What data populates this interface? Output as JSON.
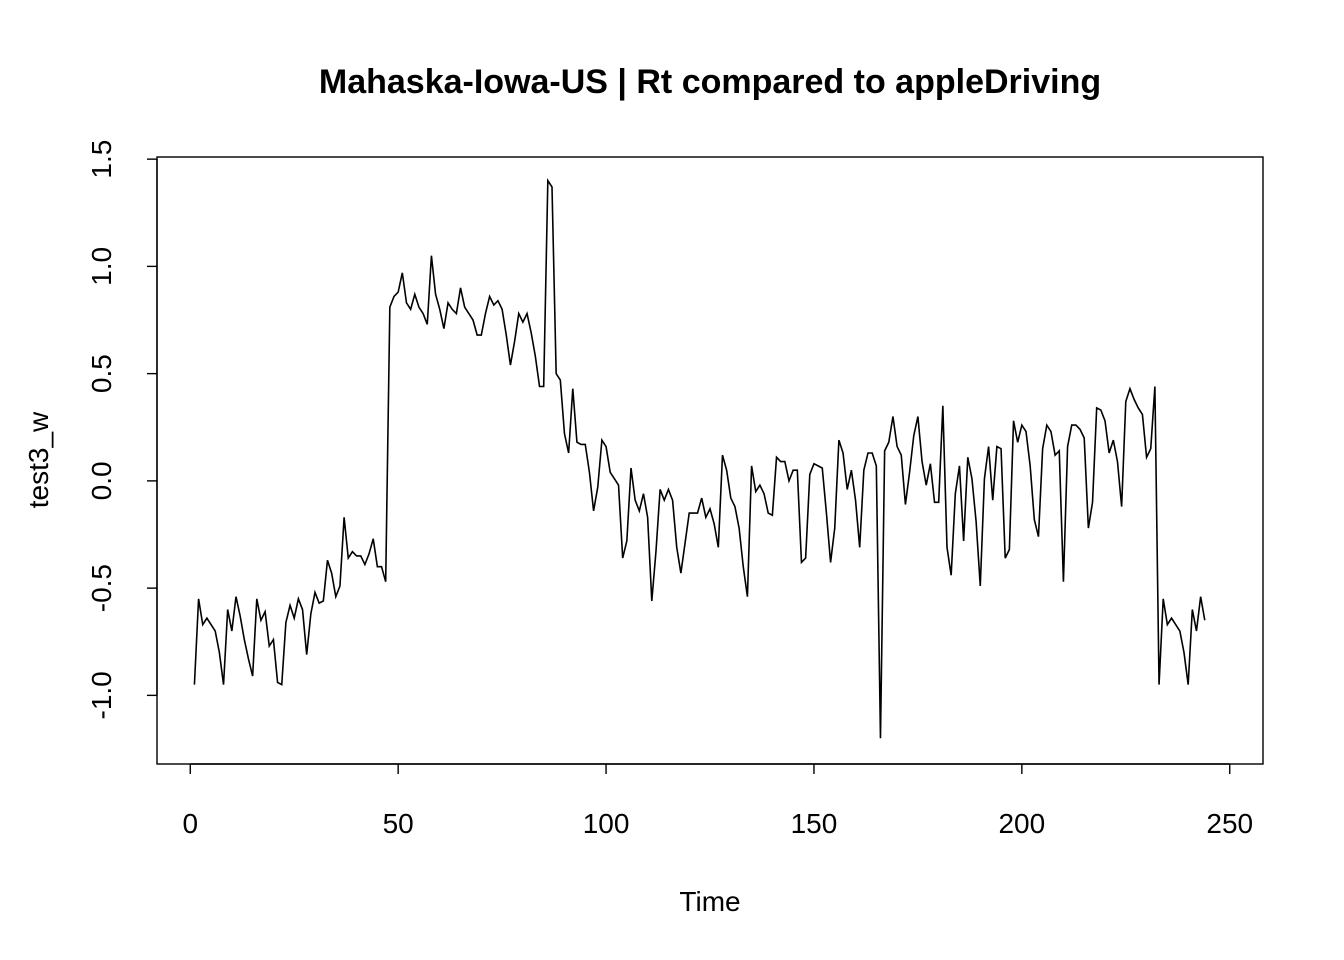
{
  "chart_data": {
    "type": "line",
    "title": "Mahaska-Iowa-US | Rt compared to appleDriving",
    "xlabel": "Time",
    "ylabel": "test3_w",
    "xlim": [
      -8,
      258
    ],
    "ylim": [
      -1.32,
      1.51
    ],
    "x_ticks": [
      0,
      50,
      100,
      150,
      200,
      250
    ],
    "x_tick_labels": [
      "0",
      "50",
      "100",
      "150",
      "200",
      "250"
    ],
    "y_ticks": [
      -1.0,
      -0.5,
      0.0,
      0.5,
      1.0,
      1.5
    ],
    "y_tick_labels": [
      "-1.0",
      "-0.5",
      "0.0",
      "0.5",
      "1.0",
      "1.5"
    ],
    "grid": false,
    "legend": "none",
    "color": "#000000",
    "x_start": 1,
    "values": [
      -0.95,
      -0.55,
      -0.67,
      -0.64,
      -0.67,
      -0.7,
      -0.8,
      -0.95,
      -0.6,
      -0.7,
      -0.54,
      -0.63,
      -0.74,
      -0.83,
      -0.91,
      -0.55,
      -0.65,
      -0.61,
      -0.77,
      -0.74,
      -0.94,
      -0.95,
      -0.66,
      -0.58,
      -0.64,
      -0.55,
      -0.6,
      -0.81,
      -0.62,
      -0.52,
      -0.57,
      -0.56,
      -0.37,
      -0.43,
      -0.54,
      -0.49,
      -0.17,
      -0.36,
      -0.33,
      -0.35,
      -0.35,
      -0.39,
      -0.34,
      -0.27,
      -0.4,
      -0.4,
      -0.47,
      0.81,
      0.86,
      0.88,
      0.97,
      0.83,
      0.8,
      0.87,
      0.81,
      0.78,
      0.73,
      1.05,
      0.87,
      0.8,
      0.71,
      0.83,
      0.8,
      0.78,
      0.9,
      0.81,
      0.78,
      0.75,
      0.68,
      0.68,
      0.78,
      0.86,
      0.82,
      0.84,
      0.8,
      0.68,
      0.54,
      0.65,
      0.78,
      0.74,
      0.78,
      0.69,
      0.58,
      0.44,
      0.44,
      1.4,
      1.37,
      0.5,
      0.47,
      0.22,
      0.13,
      0.43,
      0.18,
      0.17,
      0.17,
      0.04,
      -0.14,
      -0.03,
      0.19,
      0.16,
      0.04,
      0.01,
      -0.02,
      -0.36,
      -0.28,
      0.06,
      -0.09,
      -0.14,
      -0.06,
      -0.17,
      -0.56,
      -0.33,
      -0.04,
      -0.09,
      -0.04,
      -0.09,
      -0.31,
      -0.43,
      -0.29,
      -0.15,
      -0.15,
      -0.15,
      -0.08,
      -0.17,
      -0.13,
      -0.2,
      -0.31,
      0.12,
      0.05,
      -0.08,
      -0.12,
      -0.22,
      -0.4,
      -0.54,
      0.07,
      -0.05,
      -0.02,
      -0.06,
      -0.15,
      -0.16,
      0.11,
      0.09,
      0.09,
      0.0,
      0.05,
      0.05,
      -0.38,
      -0.36,
      0.03,
      0.08,
      0.07,
      0.06,
      -0.15,
      -0.38,
      -0.22,
      0.19,
      0.13,
      -0.04,
      0.05,
      -0.09,
      -0.31,
      0.05,
      0.13,
      0.13,
      0.07,
      -1.2,
      0.14,
      0.18,
      0.3,
      0.16,
      0.12,
      -0.11,
      0.04,
      0.21,
      0.3,
      0.09,
      -0.02,
      0.08,
      -0.1,
      -0.1,
      0.35,
      -0.31,
      -0.44,
      -0.06,
      0.07,
      -0.28,
      0.11,
      0.01,
      -0.19,
      -0.49,
      0.01,
      0.16,
      -0.09,
      0.16,
      0.15,
      -0.36,
      -0.32,
      0.28,
      0.18,
      0.26,
      0.23,
      0.07,
      -0.18,
      -0.26,
      0.15,
      0.26,
      0.23,
      0.12,
      0.14,
      -0.47,
      0.16,
      0.26,
      0.26,
      0.24,
      0.2,
      -0.22,
      -0.1,
      0.34,
      0.33,
      0.28,
      0.13,
      0.19,
      0.09,
      -0.12,
      0.37,
      0.43,
      0.38,
      0.34,
      0.31,
      0.11,
      0.15,
      0.44,
      -0.95,
      -0.55,
      -0.67,
      -0.64,
      -0.67,
      -0.7,
      -0.8,
      -0.95,
      -0.6,
      -0.7,
      -0.54,
      -0.65
    ]
  }
}
